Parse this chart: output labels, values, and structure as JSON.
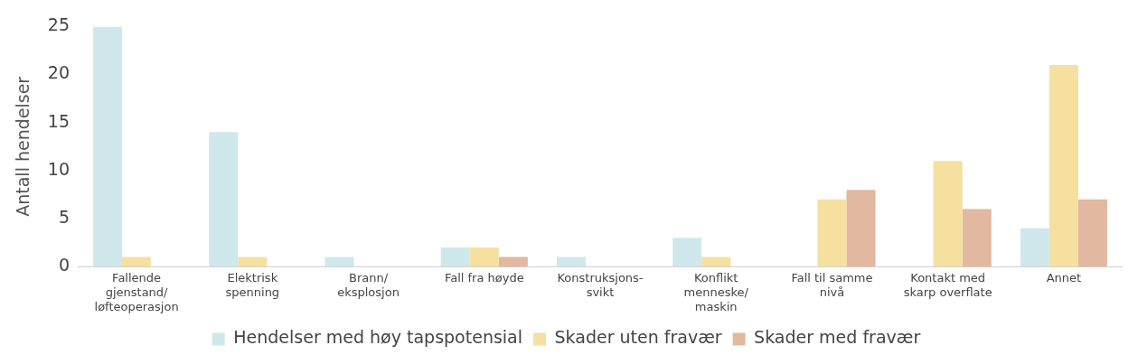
{
  "chart_data": {
    "type": "bar",
    "ylabel": "Antall hendelser",
    "categories": [
      "Fallende\ngjenstand/\nløfteoperasjon",
      "Elektrisk\nspenning",
      "Brann/\neksplosjon",
      "Fall fra høyde",
      "Konstruksjons-\nsvikt",
      "Konflikt\nmenneske/\nmaskin",
      "Fall til samme\nnivå",
      "Kontakt med\nskarp overflate",
      "Annet"
    ],
    "series": [
      {
        "name": "Hendelser med høy tapspotensial",
        "color": "#cfe8ec",
        "values": [
          25,
          14,
          1,
          2,
          1,
          3,
          0,
          0,
          4
        ]
      },
      {
        "name": "Skader uten fravær",
        "color": "#f5e0a0",
        "values": [
          1,
          1,
          0,
          2,
          0,
          1,
          7,
          11,
          21
        ]
      },
      {
        "name": "Skader med fravær",
        "color": "#e3b8a0",
        "values": [
          0,
          0,
          0,
          1,
          0,
          0,
          8,
          6,
          7
        ]
      }
    ],
    "ylim": [
      0,
      25
    ],
    "yticks": [
      0,
      5,
      10,
      15,
      20,
      25
    ],
    "grid": false,
    "legend": "bottom"
  }
}
